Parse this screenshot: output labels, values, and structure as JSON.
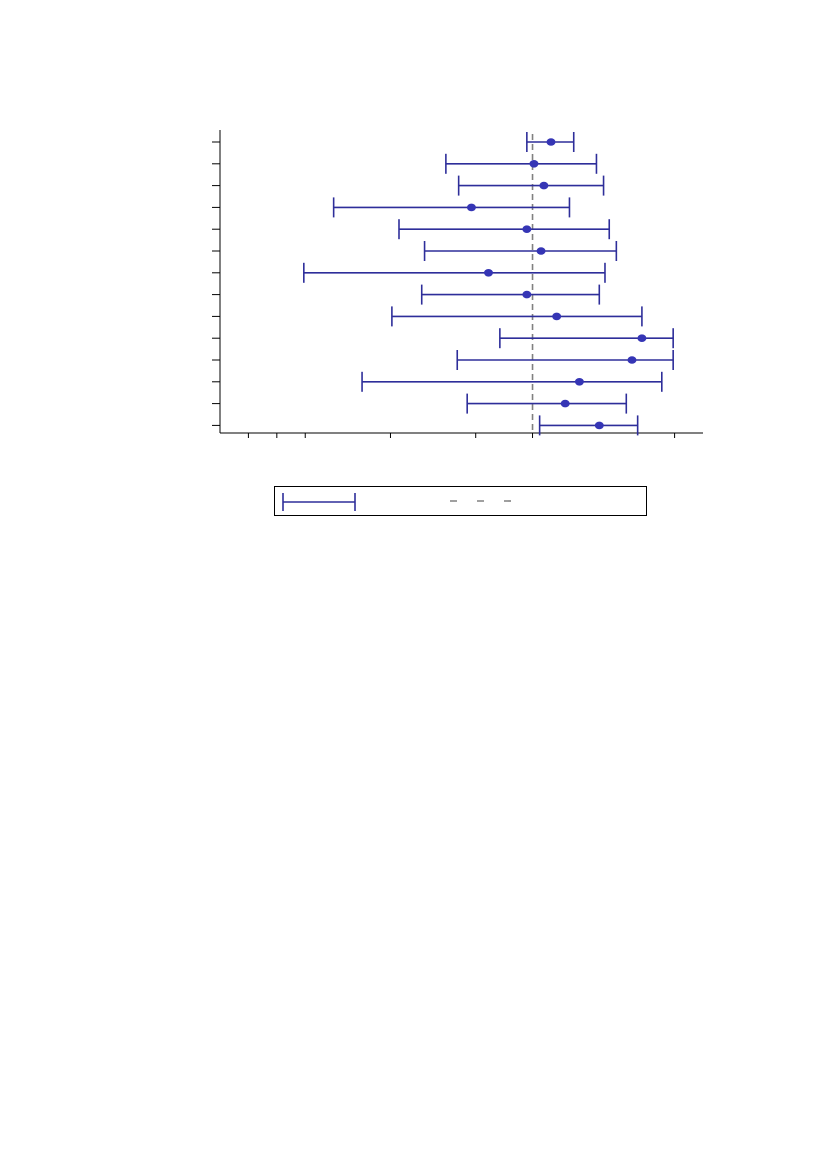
{
  "chart_data": {
    "type": "forest",
    "title": "",
    "xlabel": "",
    "ylabel": "",
    "xlim": [
      -2.2,
      1.2
    ],
    "reference_line": 0,
    "grid": false,
    "legend_placement": "bottom",
    "colors": {
      "interval": "#2e2e9a",
      "point": "#3535b5",
      "reference": "#808080"
    },
    "rows": [
      {
        "estimate": 0.13,
        "lower": -0.04,
        "upper": 0.29
      },
      {
        "estimate": 0.01,
        "lower": -0.61,
        "upper": 0.45
      },
      {
        "estimate": 0.08,
        "lower": -0.52,
        "upper": 0.5
      },
      {
        "estimate": -0.43,
        "lower": -1.4,
        "upper": 0.26
      },
      {
        "estimate": -0.04,
        "lower": -0.94,
        "upper": 0.54
      },
      {
        "estimate": 0.06,
        "lower": -0.76,
        "upper": 0.59
      },
      {
        "estimate": -0.31,
        "lower": -1.61,
        "upper": 0.51
      },
      {
        "estimate": -0.04,
        "lower": -0.78,
        "upper": 0.47
      },
      {
        "estimate": 0.17,
        "lower": -0.99,
        "upper": 0.77
      },
      {
        "estimate": 0.77,
        "lower": -0.23,
        "upper": 0.99
      },
      {
        "estimate": 0.7,
        "lower": -0.53,
        "upper": 0.99
      },
      {
        "estimate": 0.33,
        "lower": -1.2,
        "upper": 0.91
      },
      {
        "estimate": 0.23,
        "lower": -0.46,
        "upper": 0.66
      },
      {
        "estimate": 0.47,
        "lower": 0.05,
        "upper": 0.74
      }
    ],
    "x_ticks": [
      -2.0,
      -1.8,
      -1.6,
      -1.0,
      -0.4,
      0.0,
      1.0
    ],
    "legend": [
      {
        "kind": "interval",
        "label": ""
      },
      {
        "kind": "reference",
        "label": ""
      }
    ]
  }
}
